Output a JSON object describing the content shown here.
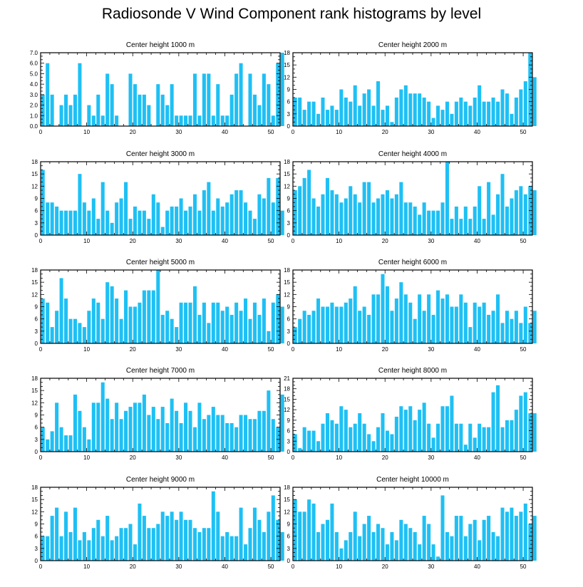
{
  "title": "Radiosonde V Wind Component rank histograms by level",
  "colors": {
    "bar": "#1ec0f4",
    "axis": "#000000"
  },
  "chart_data": [
    {
      "type": "bar",
      "title": "Center height 1000 m",
      "xlim": [
        0,
        52
      ],
      "ylim": [
        0,
        7
      ],
      "xticks": [
        0,
        10,
        20,
        30,
        40,
        50
      ],
      "yticks": [
        0,
        1,
        2,
        3,
        4,
        5,
        6,
        7
      ],
      "ytick_labels": [
        "0.0",
        "1.0",
        "2.0",
        "3.0",
        "4.0",
        "5.0",
        "6.0",
        "7.0"
      ],
      "values": [
        3,
        6,
        3,
        0,
        2,
        3,
        2,
        3,
        6,
        0,
        2,
        1,
        3,
        1,
        5,
        4,
        1,
        0,
        0,
        5,
        4,
        3,
        3,
        2,
        0,
        4,
        3,
        2,
        4,
        1,
        1,
        1,
        1,
        5,
        1,
        5,
        5,
        1,
        4,
        1,
        1,
        3,
        5,
        6,
        0,
        5,
        3,
        2,
        5,
        4,
        1,
        6,
        7
      ]
    },
    {
      "type": "bar",
      "title": "Center height 2000 m",
      "xlim": [
        0,
        52
      ],
      "ylim": [
        0,
        18
      ],
      "xticks": [
        0,
        10,
        20,
        30,
        40,
        50
      ],
      "yticks": [
        0,
        3,
        6,
        9,
        12,
        15,
        18
      ],
      "values": [
        7,
        7,
        4,
        6,
        6,
        3,
        7,
        4,
        5,
        4,
        9,
        7,
        6,
        10,
        5,
        8,
        9,
        5,
        11,
        4,
        5,
        1,
        7,
        9,
        10,
        8,
        8,
        8,
        7,
        6,
        2,
        5,
        4,
        6,
        3,
        6,
        7,
        6,
        5,
        7,
        10,
        6,
        6,
        7,
        6,
        9,
        8,
        3,
        7,
        9,
        11,
        18,
        12
      ]
    },
    {
      "type": "bar",
      "title": "Center height 3000 m",
      "xlim": [
        0,
        52
      ],
      "ylim": [
        0,
        18
      ],
      "xticks": [
        0,
        10,
        20,
        30,
        40,
        50
      ],
      "yticks": [
        0,
        3,
        6,
        9,
        12,
        15,
        18
      ],
      "values": [
        16,
        8,
        8,
        7,
        6,
        6,
        6,
        6,
        15,
        8,
        6,
        9,
        4,
        13,
        6,
        3,
        8,
        9,
        13,
        4,
        7,
        6,
        6,
        4,
        10,
        8,
        2,
        6,
        7,
        7,
        9,
        6,
        7,
        10,
        6,
        11,
        13,
        6,
        9,
        7,
        8,
        10,
        11,
        11,
        8,
        6,
        4,
        10,
        9,
        14,
        8,
        14,
        6
      ]
    },
    {
      "type": "bar",
      "title": "Center height 4000 m",
      "xlim": [
        0,
        52
      ],
      "ylim": [
        0,
        18
      ],
      "xticks": [
        0,
        10,
        20,
        30,
        40,
        50
      ],
      "yticks": [
        0,
        3,
        6,
        9,
        12,
        15,
        18
      ],
      "values": [
        11,
        12,
        14,
        16,
        9,
        7,
        10,
        14,
        11,
        10,
        8,
        9,
        12,
        10,
        8,
        13,
        13,
        8,
        9,
        10,
        11,
        9,
        10,
        13,
        8,
        8,
        7,
        5,
        8,
        6,
        6,
        6,
        8,
        18,
        4,
        7,
        4,
        7,
        4,
        7,
        12,
        4,
        13,
        5,
        10,
        15,
        7,
        9,
        11,
        12,
        10,
        12,
        11
      ]
    },
    {
      "type": "bar",
      "title": "Center height 5000 m",
      "xlim": [
        0,
        52
      ],
      "ylim": [
        0,
        18
      ],
      "xticks": [
        0,
        10,
        20,
        30,
        40,
        50
      ],
      "yticks": [
        0,
        3,
        6,
        9,
        12,
        15,
        18
      ],
      "values": [
        11,
        10,
        4,
        8,
        16,
        11,
        6,
        6,
        5,
        4,
        8,
        11,
        10,
        6,
        15,
        14,
        11,
        6,
        13,
        9,
        9,
        10,
        13,
        13,
        13,
        18,
        7,
        8,
        6,
        4,
        10,
        10,
        10,
        14,
        7,
        10,
        5,
        10,
        10,
        8,
        9,
        7,
        10,
        8,
        11,
        6,
        10,
        7,
        11,
        3,
        10,
        12,
        9
      ]
    },
    {
      "type": "bar",
      "title": "Center height 6000 m",
      "xlim": [
        0,
        52
      ],
      "ylim": [
        0,
        18
      ],
      "xticks": [
        0,
        10,
        20,
        30,
        40,
        50
      ],
      "yticks": [
        0,
        3,
        6,
        9,
        12,
        15,
        18
      ],
      "values": [
        4,
        6,
        8,
        7,
        8,
        11,
        9,
        9,
        10,
        9,
        9,
        10,
        11,
        14,
        8,
        9,
        7,
        12,
        12,
        17,
        14,
        8,
        11,
        15,
        12,
        10,
        6,
        12,
        8,
        12,
        7,
        13,
        11,
        12,
        9,
        9,
        12,
        10,
        4,
        10,
        9,
        10,
        7,
        8,
        12,
        5,
        8,
        6,
        8,
        5,
        9,
        5,
        8
      ]
    },
    {
      "type": "bar",
      "title": "Center height 7000 m",
      "xlim": [
        0,
        52
      ],
      "ylim": [
        0,
        18
      ],
      "xticks": [
        0,
        10,
        20,
        30,
        40,
        50
      ],
      "yticks": [
        0,
        3,
        6,
        9,
        12,
        15,
        18
      ],
      "values": [
        6,
        3,
        5,
        12,
        6,
        4,
        4,
        14,
        10,
        6,
        3,
        12,
        12,
        17,
        13,
        8,
        12,
        8,
        10,
        11,
        12,
        12,
        14,
        9,
        11,
        8,
        11,
        7,
        13,
        10,
        7,
        12,
        10,
        6,
        12,
        8,
        9,
        11,
        9,
        9,
        7,
        7,
        6,
        9,
        9,
        8,
        8,
        10,
        10,
        15,
        8,
        6,
        14
      ]
    },
    {
      "type": "bar",
      "title": "Center height 8000 m",
      "xlim": [
        0,
        52
      ],
      "ylim": [
        0,
        21
      ],
      "xticks": [
        0,
        10,
        20,
        30,
        40,
        50
      ],
      "yticks": [
        0,
        3,
        6,
        9,
        12,
        15,
        18,
        21
      ],
      "values": [
        5,
        1,
        7,
        6,
        6,
        3,
        8,
        11,
        9,
        8,
        13,
        12,
        7,
        8,
        11,
        8,
        5,
        3,
        7,
        11,
        6,
        5,
        10,
        13,
        12,
        13,
        9,
        12,
        14,
        8,
        4,
        8,
        13,
        13,
        16,
        8,
        8,
        2,
        8,
        4,
        8,
        7,
        7,
        17,
        19,
        7,
        9,
        9,
        12,
        16,
        17,
        11,
        11
      ]
    },
    {
      "type": "bar",
      "title": "Center height 9000 m",
      "xlim": [
        0,
        52
      ],
      "ylim": [
        0,
        18
      ],
      "xticks": [
        0,
        10,
        20,
        30,
        40,
        50
      ],
      "yticks": [
        0,
        3,
        6,
        9,
        12,
        15,
        18
      ],
      "values": [
        6,
        6,
        11,
        13,
        6,
        12,
        7,
        13,
        5,
        7,
        5,
        8,
        10,
        6,
        11,
        5,
        6,
        8,
        8,
        9,
        4,
        14,
        11,
        8,
        8,
        9,
        12,
        11,
        12,
        10,
        12,
        10,
        10,
        8,
        7,
        8,
        8,
        17,
        12,
        6,
        7,
        6,
        6,
        13,
        4,
        8,
        13,
        10,
        7,
        12,
        16,
        10,
        7
      ]
    },
    {
      "type": "bar",
      "title": "Center height 10000 m",
      "xlim": [
        0,
        52
      ],
      "ylim": [
        0,
        18
      ],
      "xticks": [
        0,
        10,
        20,
        30,
        40,
        50
      ],
      "yticks": [
        0,
        3,
        6,
        9,
        12,
        15,
        18
      ],
      "values": [
        15,
        12,
        12,
        15,
        14,
        7,
        9,
        10,
        14,
        7,
        3,
        5,
        7,
        12,
        6,
        9,
        11,
        7,
        9,
        8,
        4,
        7,
        5,
        10,
        9,
        8,
        7,
        4,
        11,
        9,
        4,
        1,
        16,
        7,
        6,
        11,
        11,
        6,
        9,
        10,
        5,
        10,
        11,
        7,
        6,
        13,
        12,
        13,
        11,
        12,
        14,
        9,
        11
      ]
    }
  ]
}
